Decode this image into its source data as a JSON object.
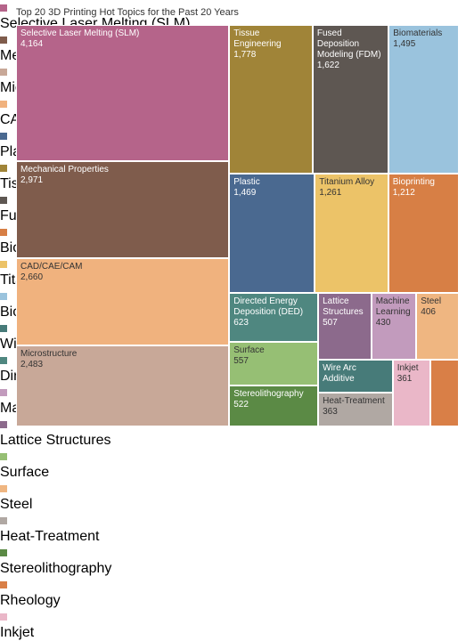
{
  "chart_data": {
    "type": "treemap",
    "title": "Top 20 3D Printing Hot Topics for the Past 20 Years",
    "categories": [
      "Selective Laser Melting (SLM)",
      "Mechanical Properties",
      "Microstructure",
      "CAD/CAE/CAM",
      "Plastic",
      "Tissue Engineering",
      "Fused Deposition Modeling (FDM)",
      "Bioprinting",
      "Titanium Alloy",
      "Biomaterials",
      "Wire Arc Additive Manufacturing",
      "Directed Energy Deposition (DED)",
      "Machine Learning",
      "Lattice Structures",
      "Surface",
      "Steel",
      "Heat-Treatment",
      "Stereolithography",
      "Rheology",
      "Inkjet"
    ],
    "tile_labels": [
      "Selective Laser Melting (SLM)",
      "Mechanical Properties",
      "Microstructure",
      "CAD/CAE/CAM",
      "Plastic",
      "Tissue Engineering",
      "Fused Deposition Modeling (FDM)",
      "Bioprinting",
      "Titanium Alloy",
      "Biomaterials",
      "Wire Arc Additive",
      "Directed Energy Deposition (DED)",
      "Machine Learning",
      "Lattice Structures",
      "Surface",
      "Steel",
      "Heat-Treatment",
      "Stereolithography",
      null,
      "Inkjet"
    ],
    "values": [
      4164,
      2971,
      2483,
      2660,
      1469,
      1778,
      1622,
      1212,
      1261,
      1495,
      350,
      623,
      430,
      507,
      557,
      406,
      363,
      522,
      273,
      361
    ],
    "value_labels": [
      "4,164",
      "2,971",
      "2,483",
      "2,660",
      "1,469",
      "1,778",
      "1,622",
      "1,212",
      "1,261",
      "1,495",
      null,
      "623",
      "430",
      "507",
      "557",
      "406",
      "363",
      "522",
      null,
      "361"
    ],
    "colors": [
      "#b5648a",
      "#7f5c4c",
      "#c8a898",
      "#f0b27e",
      "#4a6990",
      "#a08438",
      "#5e5752",
      "#d77f45",
      "#ecc368",
      "#9ac3dd",
      "#477b79",
      "#4f8780",
      "#c29bbd",
      "#8c6a8c",
      "#96bf74",
      "#efb681",
      "#b0a8a3",
      "#5b8a45",
      "#d97f47",
      "#eab7c8"
    ]
  }
}
